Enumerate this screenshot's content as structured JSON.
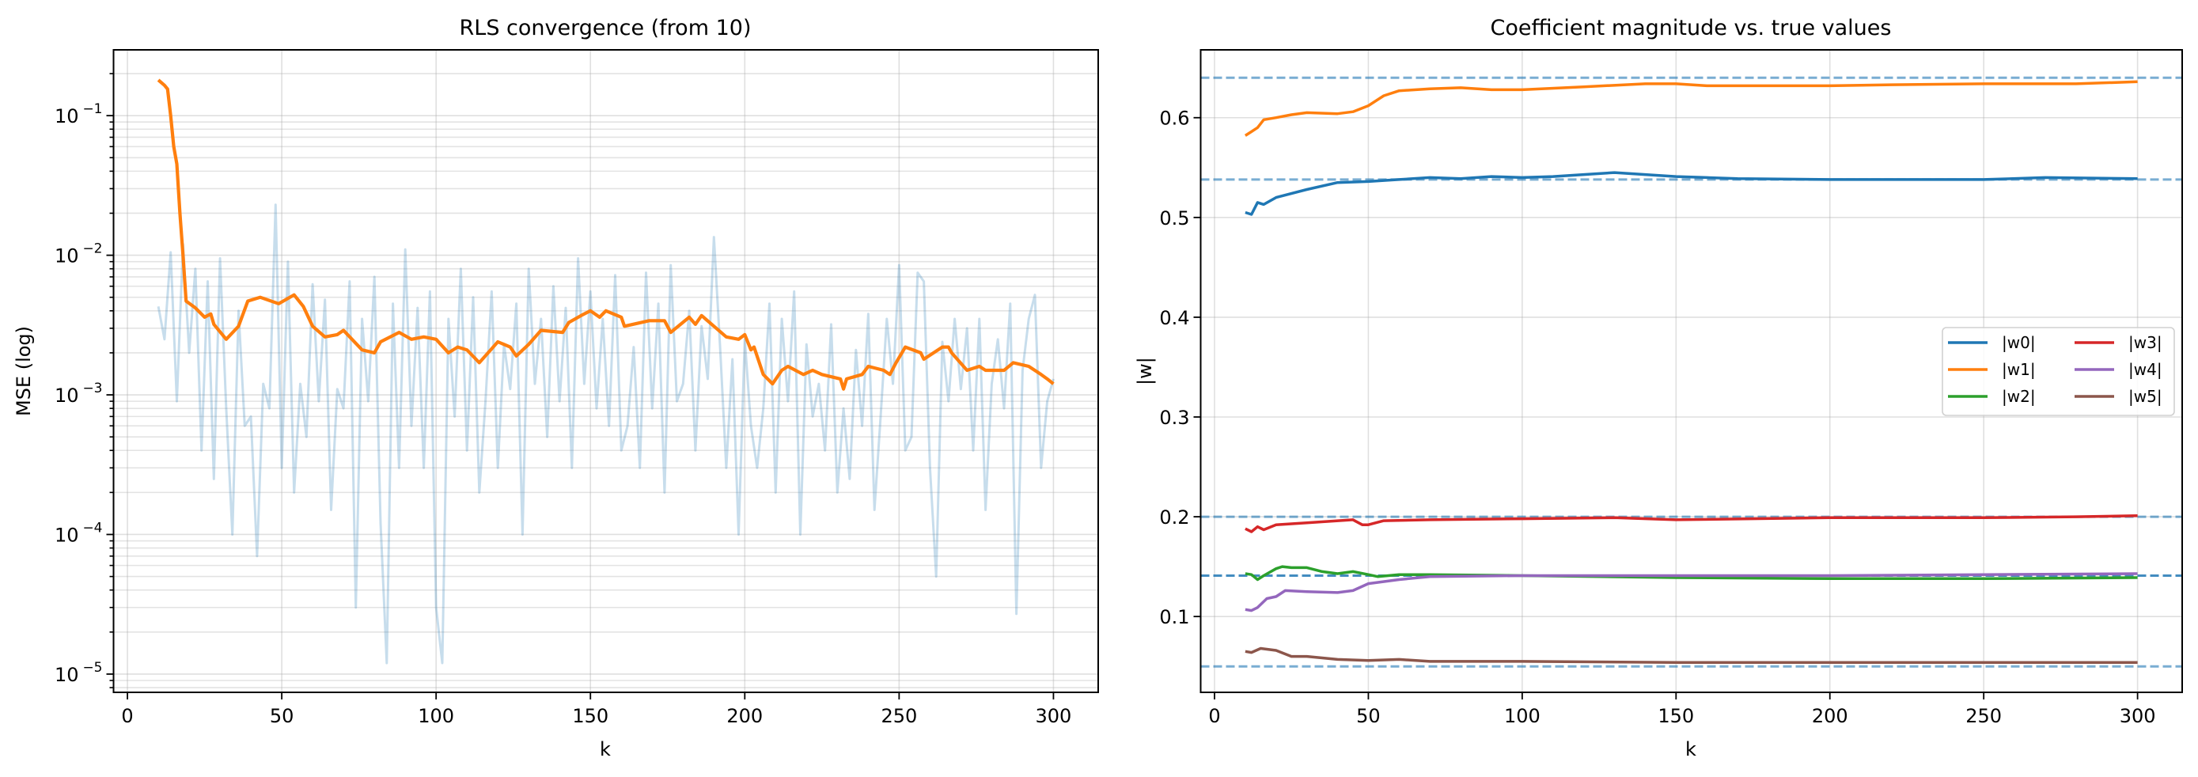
{
  "chart_data": [
    {
      "type": "line",
      "title": "RLS convergence (from 10)",
      "xlabel": "k",
      "ylabel": "MSE (log)",
      "yscale": "log",
      "xlim": [
        -4.5,
        314.5
      ],
      "ylim": [
        7.4e-06,
        0.296
      ],
      "grid": "major and minor",
      "xticks": [
        0,
        50,
        100,
        150,
        200,
        250,
        300
      ],
      "xtick_labels": [
        "0",
        "50",
        "100",
        "150",
        "200",
        "250",
        "300"
      ],
      "yticks": [
        0.1,
        0.01,
        0.001,
        0.0001,
        1e-05
      ],
      "ytick_labels": [
        {
          "base": "10",
          "exp": "−1"
        },
        {
          "base": "10",
          "exp": "−2"
        },
        {
          "base": "10",
          "exp": "−3"
        },
        {
          "base": "10",
          "exp": "−4"
        },
        {
          "base": "10",
          "exp": "−5"
        }
      ],
      "series": [
        {
          "color": "#1f77b4",
          "alpha": 0.25,
          "x": [
            10,
            12,
            14,
            16,
            18,
            20,
            22,
            24,
            26,
            28,
            30,
            32,
            34,
            36,
            38,
            40,
            42,
            44,
            46,
            48,
            50,
            52,
            54,
            56,
            58,
            60,
            62,
            64,
            66,
            68,
            70,
            72,
            74,
            76,
            78,
            80,
            82,
            84,
            86,
            88,
            90,
            92,
            94,
            96,
            98,
            100,
            102,
            104,
            106,
            108,
            110,
            112,
            114,
            116,
            118,
            120,
            122,
            124,
            126,
            128,
            130,
            132,
            134,
            136,
            138,
            140,
            142,
            144,
            146,
            148,
            150,
            152,
            154,
            156,
            158,
            160,
            162,
            164,
            166,
            168,
            170,
            172,
            174,
            176,
            178,
            180,
            182,
            184,
            186,
            188,
            190,
            192,
            194,
            196,
            198,
            200,
            202,
            204,
            206,
            208,
            210,
            212,
            214,
            216,
            218,
            220,
            222,
            224,
            226,
            228,
            230,
            232,
            234,
            236,
            238,
            240,
            242,
            244,
            246,
            248,
            250,
            252,
            254,
            256,
            258,
            260,
            262,
            264,
            266,
            268,
            270,
            272,
            274,
            276,
            278,
            280,
            282,
            284,
            286,
            288,
            290,
            292,
            294,
            296,
            298,
            300
          ],
          "y": [
            0.0043,
            0.0025,
            0.0105,
            0.0009,
            0.012,
            0.002,
            0.008,
            0.0004,
            0.0065,
            0.00025,
            0.0095,
            0.0008,
            0.0001,
            0.004,
            0.0006,
            0.0007,
            7e-05,
            0.0012,
            0.0008,
            0.023,
            0.0003,
            0.009,
            0.0002,
            0.0012,
            0.0005,
            0.0062,
            0.0009,
            0.0048,
            0.00015,
            0.0011,
            0.0008,
            0.0065,
            3e-05,
            0.0035,
            0.0009,
            0.007,
            0.00012,
            1.2e-05,
            0.0045,
            0.0003,
            0.011,
            0.0006,
            0.0042,
            0.0003,
            0.0055,
            3e-05,
            1.2e-05,
            0.0035,
            0.0007,
            0.008,
            0.0004,
            0.005,
            0.0002,
            0.0009,
            0.0055,
            0.0003,
            0.0023,
            0.0011,
            0.0045,
            0.0001,
            0.008,
            0.0012,
            0.0035,
            0.0005,
            0.006,
            0.0009,
            0.0042,
            0.0003,
            0.0095,
            0.0012,
            0.0055,
            0.0008,
            0.0035,
            0.0006,
            0.0072,
            0.0004,
            0.0006,
            0.0022,
            0.0003,
            0.0075,
            0.0008,
            0.0045,
            0.0002,
            0.0085,
            0.0009,
            0.0012,
            0.004,
            0.0004,
            0.0031,
            0.0013,
            0.0135,
            0.0022,
            0.0003,
            0.0018,
            0.0001,
            0.0025,
            0.0006,
            0.0003,
            0.0008,
            0.0045,
            0.0002,
            0.0035,
            0.0009,
            0.0055,
            0.0001,
            0.0023,
            0.0007,
            0.0012,
            0.0004,
            0.0032,
            0.0002,
            0.0008,
            0.00025,
            0.0021,
            0.0006,
            0.0038,
            0.00015,
            0.0007,
            0.0035,
            0.0012,
            0.0085,
            0.0004,
            0.0005,
            0.0075,
            0.0065,
            0.0003,
            5e-05,
            0.0024,
            0.0009,
            0.0035,
            0.0011,
            0.003,
            0.0004,
            0.0035,
            0.00015,
            0.0012,
            0.0025,
            0.0008,
            0.0045,
            2.7e-05,
            0.0015,
            0.0035,
            0.0052,
            0.0003,
            0.0009,
            0.0013
          ]
        },
        {
          "color": "#ff7f0e",
          "alpha": 1,
          "x": [
            10,
            12,
            13,
            14,
            15,
            16,
            17,
            18,
            19,
            22,
            25,
            27,
            28,
            32,
            36,
            39,
            43,
            49,
            54,
            57,
            60,
            64,
            68,
            70,
            76,
            80,
            82,
            88,
            92,
            96,
            100,
            104,
            107,
            110,
            114,
            120,
            124,
            126,
            130,
            134,
            141,
            143,
            147,
            150,
            153,
            155,
            160,
            161,
            169,
            174,
            176,
            182,
            184,
            186,
            190,
            194,
            198,
            200,
            202,
            203,
            206,
            209,
            212,
            214,
            219,
            222,
            225,
            231,
            232,
            233,
            238,
            240,
            245,
            247,
            249,
            252,
            257,
            258,
            264,
            266,
            267,
            272,
            276,
            278,
            284,
            287,
            292,
            296,
            298,
            300
          ],
          "y": [
            0.18,
            0.165,
            0.155,
            0.1,
            0.06,
            0.045,
            0.02,
            0.01,
            0.0047,
            0.0042,
            0.0036,
            0.0038,
            0.0032,
            0.0025,
            0.0031,
            0.0047,
            0.005,
            0.0045,
            0.0052,
            0.0043,
            0.0031,
            0.0026,
            0.0027,
            0.0029,
            0.0021,
            0.002,
            0.0024,
            0.0028,
            0.0025,
            0.0026,
            0.0025,
            0.002,
            0.0022,
            0.0021,
            0.0017,
            0.0024,
            0.0022,
            0.0019,
            0.0023,
            0.0029,
            0.0028,
            0.0033,
            0.0037,
            0.004,
            0.0036,
            0.004,
            0.0036,
            0.0031,
            0.0034,
            0.0034,
            0.0028,
            0.0036,
            0.0032,
            0.0037,
            0.0031,
            0.0026,
            0.0025,
            0.0027,
            0.0021,
            0.0022,
            0.0014,
            0.0012,
            0.0015,
            0.0016,
            0.0014,
            0.0015,
            0.0014,
            0.0013,
            0.0011,
            0.0013,
            0.0014,
            0.0016,
            0.0015,
            0.0014,
            0.0017,
            0.0022,
            0.002,
            0.0018,
            0.0022,
            0.0022,
            0.002,
            0.0015,
            0.0016,
            0.0015,
            0.0015,
            0.0017,
            0.0016,
            0.0014,
            0.0013,
            0.0012
          ]
        }
      ]
    },
    {
      "type": "line",
      "title": "Coefficient magnitude vs. true values",
      "xlabel": "k",
      "ylabel": "|w|",
      "xlim": [
        -4.5,
        314.5
      ],
      "ylim": [
        0.024,
        0.668
      ],
      "grid": "major",
      "legend": "center-right",
      "xticks": [
        0,
        50,
        100,
        150,
        200,
        250,
        300
      ],
      "xtick_labels": [
        "0",
        "50",
        "100",
        "150",
        "200",
        "250",
        "300"
      ],
      "yticks": [
        0.1,
        0.2,
        0.3,
        0.4,
        0.5,
        0.6
      ],
      "ytick_labels": [
        "0.1",
        "0.2",
        "0.3",
        "0.4",
        "0.5",
        "0.6"
      ],
      "reference_lines": {
        "color": "#1f77b4",
        "style": "dashed",
        "values": [
          0.64,
          0.538,
          0.2,
          0.141,
          0.141,
          0.05
        ]
      },
      "series": [
        {
          "name": "|w0|",
          "color": "#1f77b4",
          "x": [
            10,
            12,
            14,
            16,
            20,
            30,
            40,
            50,
            60,
            70,
            80,
            90,
            100,
            110,
            120,
            130,
            140,
            150,
            160,
            170,
            200,
            250,
            270,
            300
          ],
          "y": [
            0.505,
            0.503,
            0.515,
            0.513,
            0.52,
            0.528,
            0.535,
            0.536,
            0.538,
            0.54,
            0.539,
            0.541,
            0.54,
            0.541,
            0.543,
            0.545,
            0.543,
            0.541,
            0.54,
            0.539,
            0.538,
            0.538,
            0.54,
            0.539
          ]
        },
        {
          "name": "|w1|",
          "color": "#ff7f0e",
          "x": [
            10,
            12,
            14,
            16,
            20,
            25,
            30,
            40,
            45,
            50,
            55,
            60,
            70,
            80,
            90,
            100,
            120,
            140,
            150,
            160,
            180,
            200,
            220,
            250,
            280,
            300
          ],
          "y": [
            0.582,
            0.586,
            0.59,
            0.598,
            0.6,
            0.603,
            0.605,
            0.604,
            0.606,
            0.612,
            0.622,
            0.627,
            0.629,
            0.63,
            0.628,
            0.628,
            0.631,
            0.634,
            0.634,
            0.632,
            0.632,
            0.632,
            0.633,
            0.634,
            0.634,
            0.636
          ]
        },
        {
          "name": "|w2|",
          "color": "#2ca02c",
          "x": [
            10,
            12,
            14,
            16,
            20,
            22,
            25,
            30,
            35,
            40,
            45,
            50,
            53,
            60,
            70,
            100,
            150,
            200,
            250,
            300
          ],
          "y": [
            0.143,
            0.142,
            0.137,
            0.141,
            0.148,
            0.15,
            0.149,
            0.149,
            0.145,
            0.143,
            0.145,
            0.142,
            0.14,
            0.142,
            0.142,
            0.141,
            0.139,
            0.138,
            0.138,
            0.139
          ]
        },
        {
          "name": "|w3|",
          "color": "#d62728",
          "x": [
            10,
            12,
            14,
            16,
            20,
            30,
            45,
            48,
            50,
            55,
            70,
            100,
            130,
            150,
            200,
            250,
            280,
            300
          ],
          "y": [
            0.188,
            0.185,
            0.19,
            0.187,
            0.192,
            0.194,
            0.197,
            0.192,
            0.192,
            0.196,
            0.197,
            0.198,
            0.199,
            0.197,
            0.199,
            0.199,
            0.2,
            0.201
          ]
        },
        {
          "name": "|w4|",
          "color": "#9467bd",
          "x": [
            10,
            12,
            14,
            17,
            20,
            23,
            30,
            40,
            45,
            50,
            60,
            70,
            100,
            150,
            200,
            250,
            300
          ],
          "y": [
            0.107,
            0.106,
            0.109,
            0.118,
            0.12,
            0.126,
            0.125,
            0.124,
            0.126,
            0.133,
            0.137,
            0.14,
            0.141,
            0.141,
            0.141,
            0.142,
            0.143
          ]
        },
        {
          "name": "|w5|",
          "color": "#8c564b",
          "x": [
            10,
            12,
            15,
            20,
            25,
            30,
            40,
            50,
            60,
            70,
            100,
            150,
            200,
            250,
            300
          ],
          "y": [
            0.065,
            0.064,
            0.068,
            0.066,
            0.06,
            0.06,
            0.057,
            0.056,
            0.057,
            0.055,
            0.055,
            0.054,
            0.054,
            0.054,
            0.054
          ]
        }
      ]
    }
  ]
}
